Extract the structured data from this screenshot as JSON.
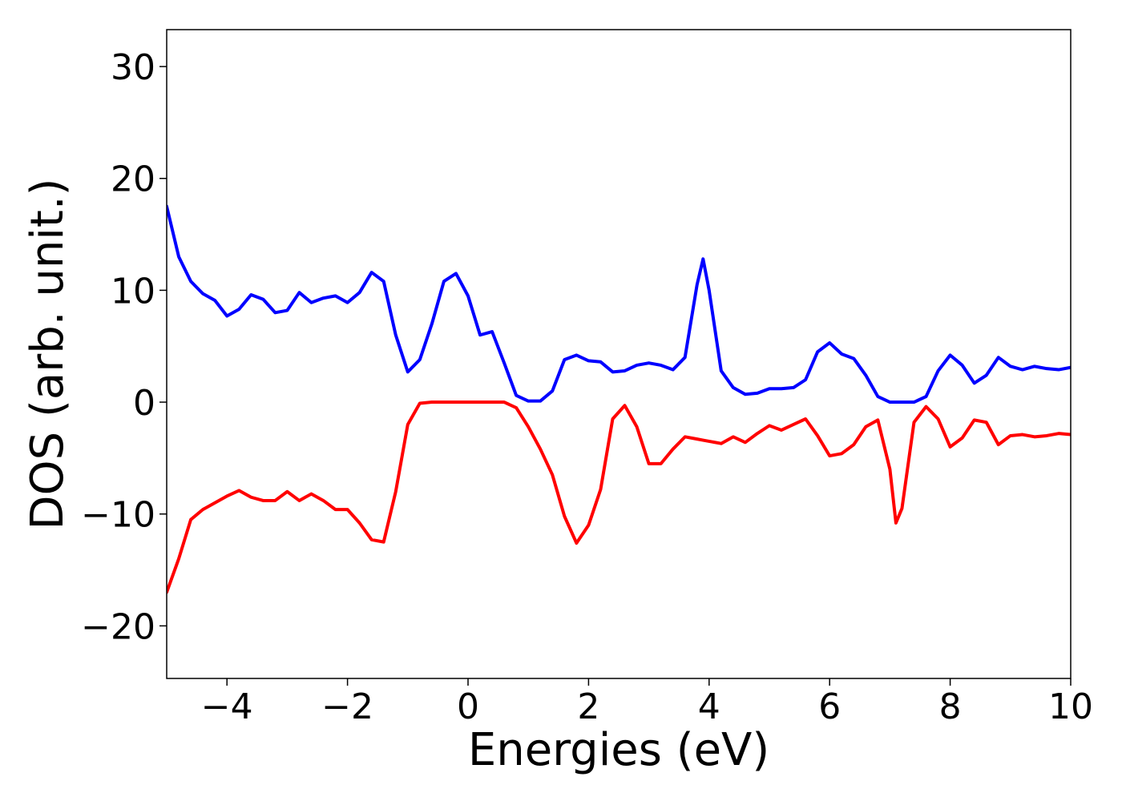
{
  "chart_data": {
    "type": "line",
    "xlabel": "Energies (eV)",
    "ylabel": "DOS (arb. unit.)",
    "xlim": [
      -5,
      10
    ],
    "ylim": [
      -24.7,
      33.3
    ],
    "xticks": [
      {
        "value": -4,
        "label": "−4"
      },
      {
        "value": -2,
        "label": "−2"
      },
      0,
      2,
      4,
      6,
      8,
      10
    ],
    "yticks": [
      {
        "value": -20,
        "label": "−20"
      },
      {
        "value": -10,
        "label": "−10"
      },
      0,
      10,
      20,
      30
    ],
    "grid": false,
    "x": [
      -5,
      -4.8,
      -4.6,
      -4.4,
      -4.2,
      -4.0,
      -3.8,
      -3.6,
      -3.4,
      -3.2,
      -3.0,
      -2.8,
      -2.6,
      -2.4,
      -2.2,
      -2.0,
      -1.8,
      -1.6,
      -1.4,
      -1.2,
      -1.0,
      -0.8,
      -0.6,
      -0.4,
      -0.2,
      0,
      0.2,
      0.4,
      0.6,
      0.8,
      1.0,
      1.2,
      1.4,
      1.6,
      1.8,
      2.0,
      2.2,
      2.4,
      2.6,
      2.8,
      3.0,
      3.2,
      3.4,
      3.6,
      3.8,
      3.9,
      4.0,
      4.2,
      4.4,
      4.6,
      4.8,
      5.0,
      5.2,
      5.4,
      5.6,
      5.8,
      6.0,
      6.2,
      6.4,
      6.6,
      6.8,
      7.0,
      7.1,
      7.2,
      7.4,
      7.6,
      7.8,
      8.0,
      8.2,
      8.4,
      8.6,
      8.8,
      9.0,
      9.2,
      9.4,
      9.6,
      9.8,
      10.0
    ],
    "series": [
      {
        "color": "#0000ff",
        "values": [
          17.5,
          13,
          10.8,
          9.7,
          9.1,
          7.7,
          8.3,
          9.6,
          9.2,
          8.0,
          8.2,
          9.8,
          8.9,
          9.3,
          9.5,
          8.9,
          9.8,
          11.6,
          10.8,
          6.0,
          2.7,
          3.8,
          7.0,
          10.8,
          11.5,
          9.5,
          6.0,
          6.3,
          3.5,
          0.6,
          0.1,
          0.1,
          1.0,
          3.8,
          4.2,
          3.7,
          3.6,
          2.7,
          2.8,
          3.3,
          3.5,
          3.3,
          2.9,
          4.0,
          10.5,
          12.8,
          10.0,
          2.8,
          1.3,
          0.7,
          0.8,
          1.2,
          1.2,
          1.3,
          2.0,
          4.5,
          5.3,
          4.3,
          3.9,
          2.4,
          0.5,
          0.0,
          0.0,
          0.0,
          0.0,
          0.5,
          2.8,
          4.2,
          3.3,
          1.7,
          2.4,
          4.0,
          3.2,
          2.9,
          3.2,
          3.0,
          2.9,
          3.1
        ]
      },
      {
        "color": "#ff0000",
        "values": [
          -17,
          -14,
          -10.5,
          -9.6,
          -9.0,
          -8.4,
          -7.9,
          -8.5,
          -8.8,
          -8.8,
          -8.0,
          -8.8,
          -8.2,
          -8.8,
          -9.6,
          -9.6,
          -10.8,
          -12.3,
          -12.5,
          -8.0,
          -2.0,
          -0.1,
          0,
          0,
          0,
          0,
          0,
          0,
          0,
          -0.5,
          -2.2,
          -4.2,
          -6.5,
          -10.2,
          -12.6,
          -11.0,
          -7.8,
          -1.5,
          -0.3,
          -2.2,
          -5.5,
          -5.5,
          -4.2,
          -3.1,
          -3.3,
          -3.4,
          -3.5,
          -3.7,
          -3.1,
          -3.6,
          -2.8,
          -2.1,
          -2.5,
          -2.0,
          -1.5,
          -3.0,
          -4.8,
          -4.6,
          -3.8,
          -2.2,
          -1.6,
          -6.0,
          -10.8,
          -9.5,
          -1.8,
          -0.4,
          -1.5,
          -4.0,
          -3.2,
          -1.6,
          -1.8,
          -3.8,
          -3.0,
          -2.9,
          -3.1,
          -3.0,
          -2.8,
          -2.9
        ]
      }
    ]
  }
}
